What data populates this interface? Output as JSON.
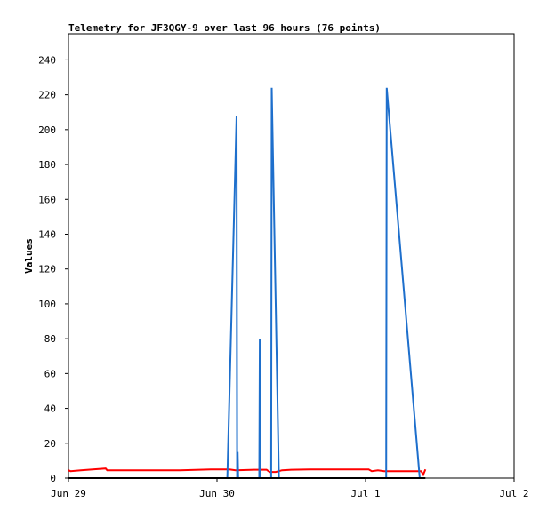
{
  "chart_data": {
    "type": "line",
    "title": "Telemetry for JF3QGY-9 over last 96 hours (76 points)",
    "xlabel": "",
    "ylabel": "Values",
    "ylim": [
      0,
      255
    ],
    "yticks": [
      0,
      20,
      40,
      60,
      80,
      100,
      120,
      140,
      160,
      180,
      200,
      220,
      240
    ],
    "xlim": [
      "2025-06-29T00:00",
      "2025-07-02T00:00"
    ],
    "xticks": [
      {
        "at": "2025-06-29T00:00",
        "label": "Jun 29"
      },
      {
        "at": "2025-06-30T00:00",
        "label": "Jun 30"
      },
      {
        "at": "2025-07-01T00:00",
        "label": "Jul 1"
      },
      {
        "at": "2025-07-02T00:00",
        "label": "Jul 2"
      }
    ],
    "grid": false,
    "series": [
      {
        "color": "#ff0000",
        "points": [
          [
            "2025-06-29T00:00",
            4.5
          ],
          [
            "2025-06-29T00:20",
            4.0
          ],
          [
            "2025-06-29T02:00",
            4.5
          ],
          [
            "2025-06-29T03:55",
            5.0
          ],
          [
            "2025-06-29T06:00",
            5.5
          ],
          [
            "2025-06-29T06:15",
            4.5
          ],
          [
            "2025-06-29T09:00",
            4.5
          ],
          [
            "2025-06-29T12:00",
            4.5
          ],
          [
            "2025-06-29T18:00",
            4.5
          ],
          [
            "2025-06-29T23:00",
            5.0
          ],
          [
            "2025-06-30T02:00",
            5.0
          ],
          [
            "2025-06-30T03:00",
            4.5
          ],
          [
            "2025-06-30T06:00",
            4.8
          ],
          [
            "2025-06-30T08:00",
            4.8
          ],
          [
            "2025-06-30T08:30",
            3.5
          ],
          [
            "2025-06-30T09:30",
            3.5
          ],
          [
            "2025-06-30T10:30",
            4.5
          ],
          [
            "2025-06-30T12:00",
            4.8
          ],
          [
            "2025-06-30T15:00",
            5.0
          ],
          [
            "2025-06-30T18:00",
            5.0
          ],
          [
            "2025-06-30T20:00",
            5.0
          ],
          [
            "2025-06-30T23:00",
            5.0
          ],
          [
            "2025-07-01T00:30",
            5.0
          ],
          [
            "2025-07-01T01:00",
            4.0
          ],
          [
            "2025-07-01T02:00",
            4.5
          ],
          [
            "2025-07-01T03:00",
            4.0
          ],
          [
            "2025-07-01T05:00",
            4.0
          ],
          [
            "2025-07-01T09:00",
            4.0
          ],
          [
            "2025-07-01T09:20",
            2.0
          ],
          [
            "2025-07-01T09:40",
            5.0
          ]
        ]
      },
      {
        "color": "#1e6fcc",
        "points": [
          [
            "2025-06-30T01:40",
            0
          ],
          [
            "2025-06-30T03:10",
            208
          ],
          [
            "2025-06-30T03:15",
            0
          ],
          [
            "2025-06-30T03:20",
            15
          ],
          [
            "2025-06-30T03:25",
            0
          ],
          [
            "2025-06-30T06:50",
            0
          ],
          [
            "2025-06-30T06:55",
            80
          ],
          [
            "2025-06-30T07:00",
            0
          ],
          [
            "2025-06-30T08:45",
            0
          ],
          [
            "2025-06-30T08:50",
            224
          ],
          [
            "2025-06-30T10:00",
            0
          ],
          [
            "2025-07-01T03:20",
            0
          ],
          [
            "2025-07-01T03:25",
            224
          ],
          [
            "2025-07-01T08:45",
            0
          ]
        ]
      },
      {
        "color": "#000000",
        "points": [
          [
            "2025-06-29T00:00",
            0
          ],
          [
            "2025-07-01T09:40",
            0
          ]
        ]
      }
    ]
  }
}
